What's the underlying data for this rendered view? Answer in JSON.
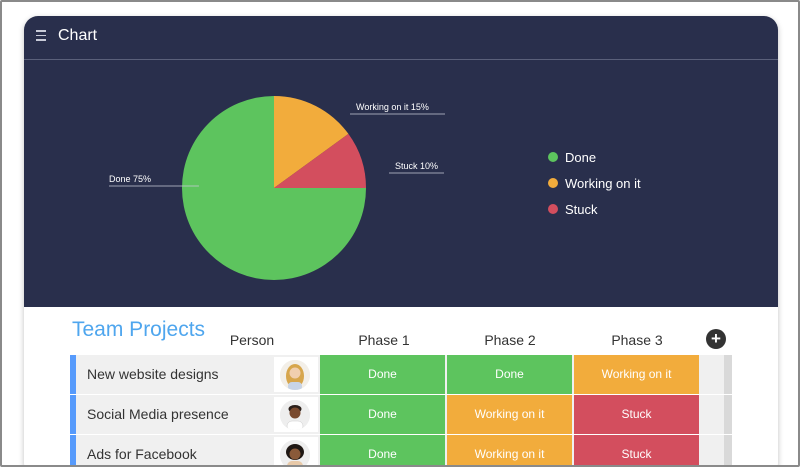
{
  "chart": {
    "title": "Chart"
  },
  "chart_data": {
    "type": "pie",
    "slices": [
      {
        "label": "Done",
        "value": 75,
        "display": "Done 75%",
        "color": "#5dc45e"
      },
      {
        "label": "Working on it",
        "value": 15,
        "display": "Working on it 15%",
        "color": "#f2ac3c"
      },
      {
        "label": "Stuck",
        "value": 10,
        "display": "Stuck 10%",
        "color": "#d34e5e"
      }
    ],
    "legend": [
      "Done",
      "Working on it",
      "Stuck"
    ],
    "legend_position": "right"
  },
  "board": {
    "title": "Team Projects",
    "columns": [
      "Person",
      "Phase 1",
      "Phase 2",
      "Phase 3"
    ],
    "add_column": "+",
    "rows": [
      {
        "name": "New website designs",
        "phase1": "Done",
        "phase2": "Done",
        "phase3": "Working on it"
      },
      {
        "name": "Social Media presence",
        "phase1": "Done",
        "phase2": "Working on it",
        "phase3": "Stuck"
      },
      {
        "name": "Ads for Facebook",
        "phase1": "Done",
        "phase2": "Working on it",
        "phase3": "Stuck"
      }
    ]
  },
  "status_colors": {
    "Done": "#5dc45e",
    "Working on it": "#f2ac3c",
    "Stuck": "#d34e5e"
  }
}
